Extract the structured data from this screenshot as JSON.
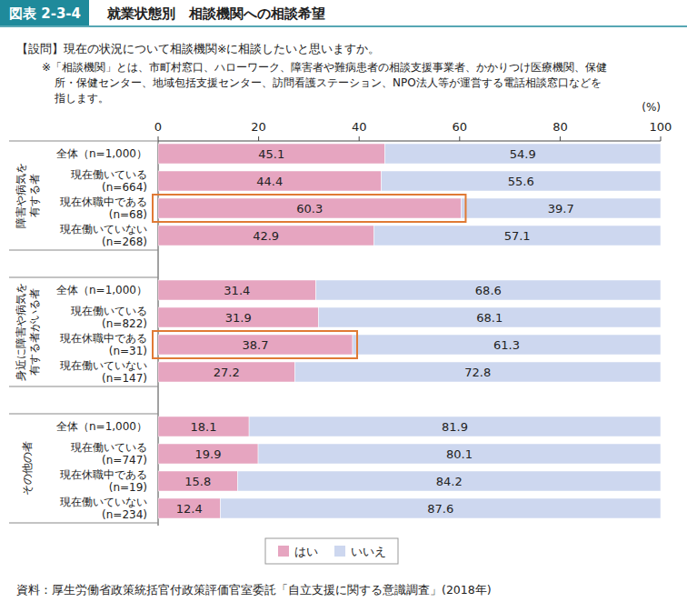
{
  "chart_data": {
    "type": "bar",
    "orientation": "horizontal",
    "stacked": true,
    "data_labels": true,
    "grid": false,
    "figure_label": "図表 2-3-4",
    "title": "就業状態別　相談機関への相談希望",
    "question": "【設問】現在の状況について相談機関※に相談したいと思いますか。",
    "note": [
      "※「相談機関」とは、市町村窓口、ハローワーク、障害者や難病患者の相談支援事業者、かかりつけ医療機関、保健",
      "所・保健センター、地域包括支援センター、訪問看護ステーション、NPO法人等が運営する電話相談窓口などを",
      "指します。"
    ],
    "unit_label": "(%)",
    "source": "資料：厚生労働省政策統括官付政策評価官室委託「自立支援に関する意識調査」(2018年)",
    "group_labels": [
      "障害や病気を\n有する者",
      "身近に障害や病気を\n有する者がいる者",
      "その他の者"
    ],
    "categories": [
      "全体（n=1,000）",
      "現在働いている\n(n=664)",
      "現在休職中である\n(n=68)",
      "現在働いていない\n(n=268)",
      "全体（n=1,000）",
      "現在働いている\n(n=822)",
      "現在休職中である\n(n=31)",
      "現在働いていない\n(n=147)",
      "全体（n=1,000）",
      "現在働いている\n(n=747)",
      "現在休職中である\n(n=19)",
      "現在働いていない\n(n=234)"
    ],
    "highlighted": [
      false,
      false,
      true,
      false,
      false,
      false,
      true,
      false,
      false,
      false,
      false,
      false
    ],
    "series": [
      {
        "name": "はい",
        "color": "#e6a5c0",
        "values": [
          45.1,
          44.4,
          60.3,
          42.9,
          31.4,
          31.9,
          38.7,
          27.2,
          18.1,
          19.9,
          15.8,
          12.4
        ]
      },
      {
        "name": "いいえ",
        "color": "#cdd7ef",
        "values": [
          54.9,
          55.6,
          39.7,
          57.1,
          68.6,
          68.1,
          61.3,
          72.8,
          81.9,
          80.1,
          84.2,
          87.6
        ]
      }
    ],
    "xlim": [
      0,
      100
    ],
    "xticks": [
      0,
      20,
      40,
      60,
      80,
      100
    ],
    "legend": "bottom"
  }
}
